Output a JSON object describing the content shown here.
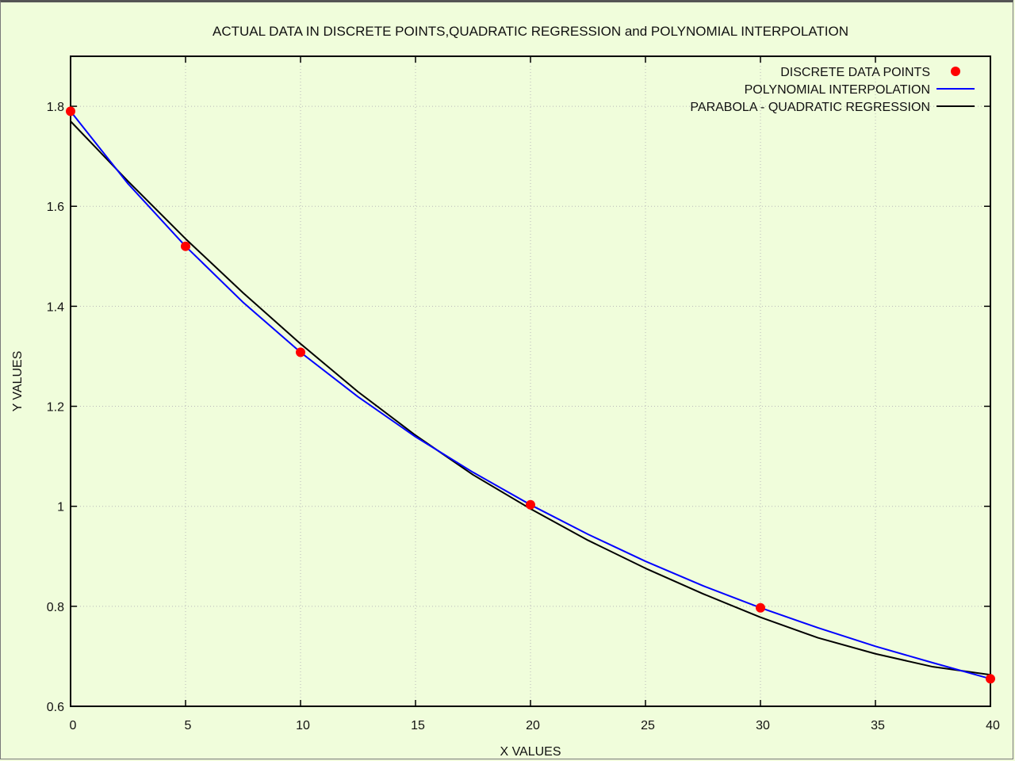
{
  "chart_data": {
    "type": "line",
    "title": "ACTUAL DATA IN DISCRETE POINTS,QUADRATIC REGRESSION and POLYNOMIAL INTERPOLATION",
    "xlabel": "X VALUES",
    "ylabel": "Y VALUES",
    "xlim": [
      0,
      40
    ],
    "ylim": [
      0.6,
      1.9
    ],
    "xticks": [
      0,
      5,
      10,
      15,
      20,
      25,
      30,
      35,
      40
    ],
    "xtick_labels": [
      "0",
      "5",
      "10",
      "15",
      "20",
      "25",
      "30",
      "35",
      "40"
    ],
    "yticks": [
      0.6,
      0.8,
      1.0,
      1.2,
      1.4,
      1.6,
      1.8
    ],
    "ytick_labels": [
      "0.6",
      "0.8",
      "1",
      "1.2",
      "1.4",
      "1.6",
      "1.8"
    ],
    "grid": true,
    "legend_position": "top-right",
    "series": [
      {
        "name": "DISCRETE DATA POINTS",
        "kind": "points",
        "color": "#ff0000",
        "x": [
          0,
          5,
          10,
          20,
          30,
          40
        ],
        "y": [
          1.79,
          1.52,
          1.308,
          1.003,
          0.797,
          0.655
        ]
      },
      {
        "name": "POLYNOMIAL INTERPOLATION",
        "kind": "line",
        "color": "#0000ff",
        "x": [
          0,
          2.5,
          5,
          7.5,
          10,
          12.5,
          15,
          17.5,
          20,
          22.5,
          25,
          27.5,
          30,
          32.5,
          35,
          37.5,
          40
        ],
        "y": [
          1.79,
          1.645,
          1.52,
          1.408,
          1.308,
          1.219,
          1.139,
          1.068,
          1.003,
          0.944,
          0.89,
          0.841,
          0.797,
          0.757,
          0.72,
          0.687,
          0.655
        ]
      },
      {
        "name": "PARABOLA - QUADRATIC  REGRESSION",
        "kind": "line",
        "color": "#000000",
        "x": [
          0,
          2.5,
          5,
          7.5,
          10,
          12.5,
          15,
          17.5,
          20,
          22.5,
          25,
          27.5,
          30,
          32.5,
          35,
          37.5,
          40
        ],
        "y": [
          1.77,
          1.65,
          1.535,
          1.427,
          1.325,
          1.229,
          1.142,
          1.063,
          0.995,
          0.932,
          0.876,
          0.825,
          0.778,
          0.737,
          0.705,
          0.679,
          0.663
        ]
      }
    ]
  }
}
